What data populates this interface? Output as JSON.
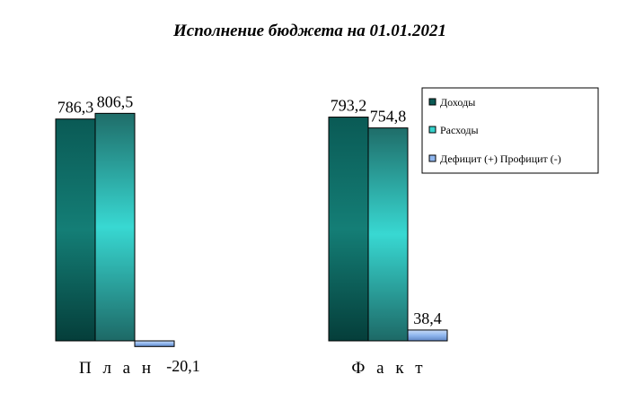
{
  "chart_data": {
    "type": "bar",
    "title": "Исполнение бюджета на 01.01.2021",
    "categories": [
      "П л а н",
      "Ф а к т"
    ],
    "series": [
      {
        "name": "Доходы",
        "values": [
          786.3,
          793.2
        ],
        "labels": [
          "786,3",
          "793,2"
        ],
        "color": "#0e6e66"
      },
      {
        "name": "Расходы",
        "values": [
          806.5,
          754.8
        ],
        "labels": [
          "806,5",
          "754,8"
        ],
        "color": "#36d2cc"
      },
      {
        "name": "Дефицит (+) Профицит (-)",
        "values": [
          -20.1,
          38.4
        ],
        "labels": [
          "-20,1",
          "38,4"
        ],
        "color": "#8fb6ee"
      }
    ],
    "legend_position": "right",
    "grid": false
  }
}
